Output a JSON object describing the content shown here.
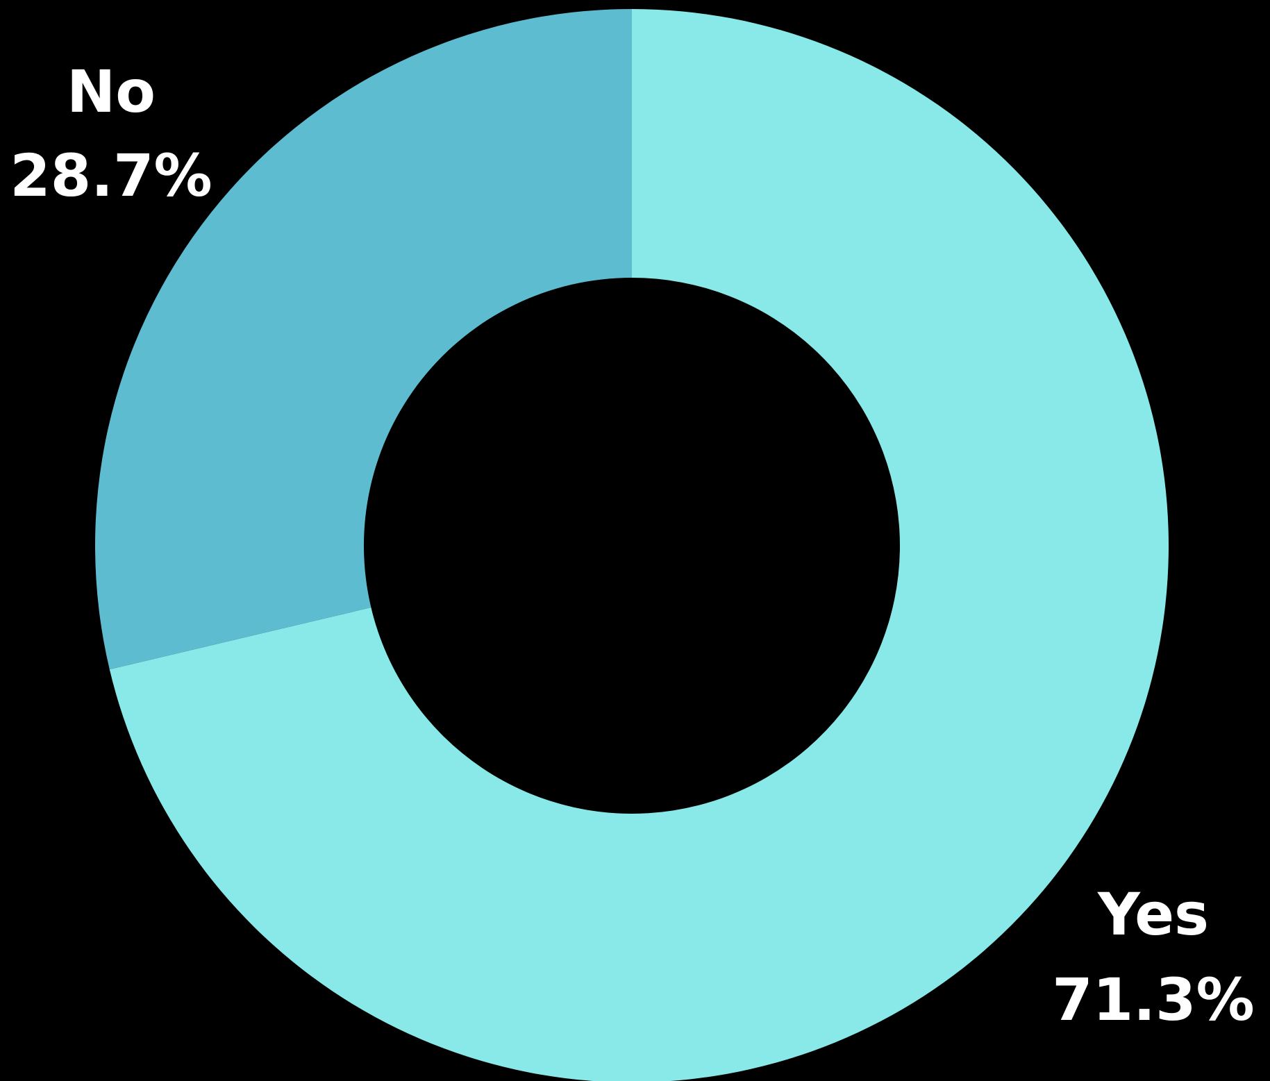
{
  "chart_data": {
    "type": "pie",
    "donut": true,
    "categories": [
      "Yes",
      "No"
    ],
    "values": [
      71.3,
      28.7
    ],
    "value_labels": [
      "71.3%",
      "28.7%"
    ],
    "colors": [
      "#88e9e8",
      "#5ebcd1"
    ]
  }
}
